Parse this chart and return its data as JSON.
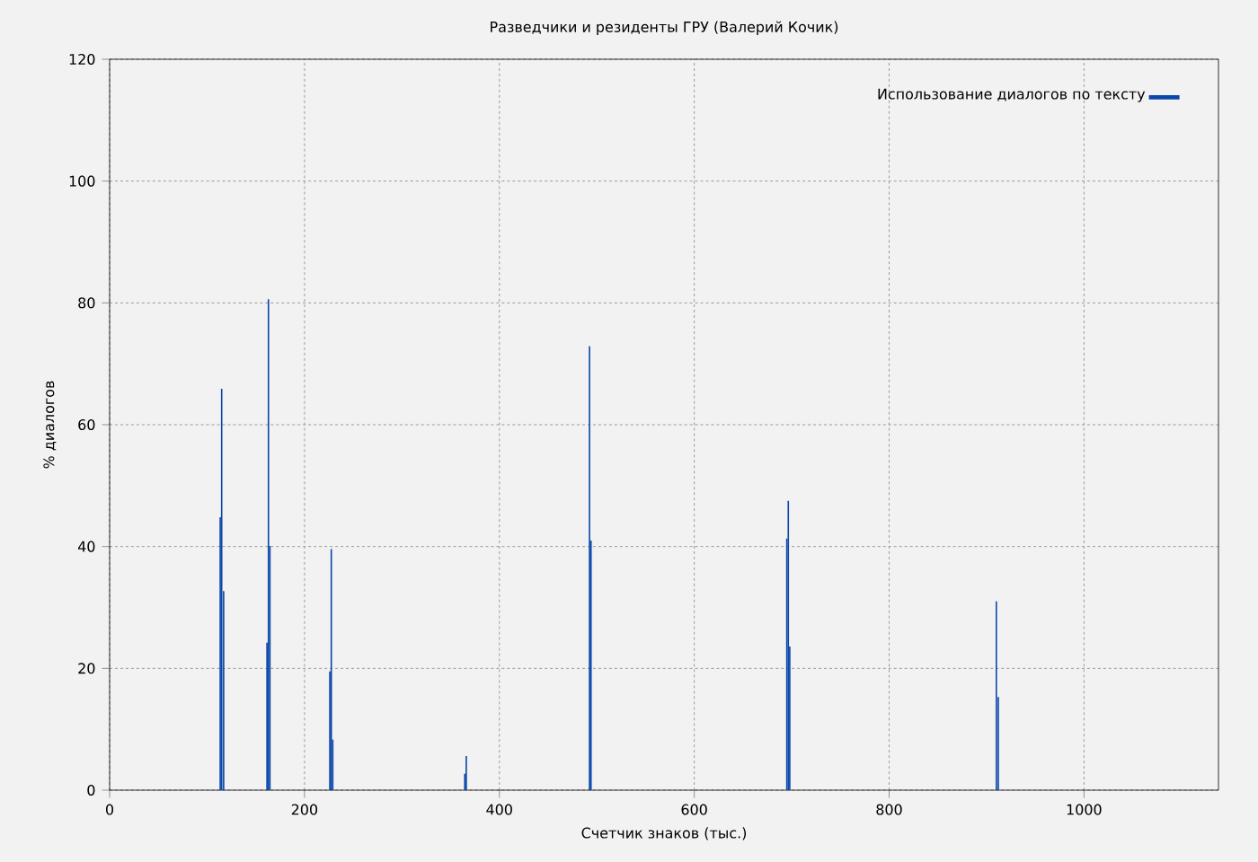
{
  "chart_data": {
    "type": "bar",
    "title": "Разведчики и резиденты ГРУ (Валерий Кочик)",
    "xlabel": "Счетчик знаков (тыс.)",
    "ylabel": "% диалогов",
    "series": [
      {
        "name": "Использование диалогов по тексту",
        "color": "#0a47a8",
        "x": [
          113.5,
          115,
          117,
          161.5,
          163,
          164.5,
          226,
          227.5,
          229,
          364.5,
          366,
          492.5,
          494,
          695,
          696.5,
          698,
          910,
          912
        ],
        "values": [
          44.8,
          65.9,
          32.7,
          24.2,
          80.6,
          40.1,
          19.5,
          39.6,
          8.3,
          2.7,
          5.6,
          72.9,
          41,
          41.3,
          47.5,
          23.6,
          31,
          15.3
        ]
      }
    ],
    "xlim": [
      0,
      1138
    ],
    "ylim": [
      0,
      120
    ],
    "xticks": [
      0,
      200,
      400,
      600,
      800,
      1000
    ],
    "yticks": [
      0,
      20,
      40,
      60,
      80,
      100,
      120
    ],
    "grid": true,
    "legend": "top right"
  }
}
